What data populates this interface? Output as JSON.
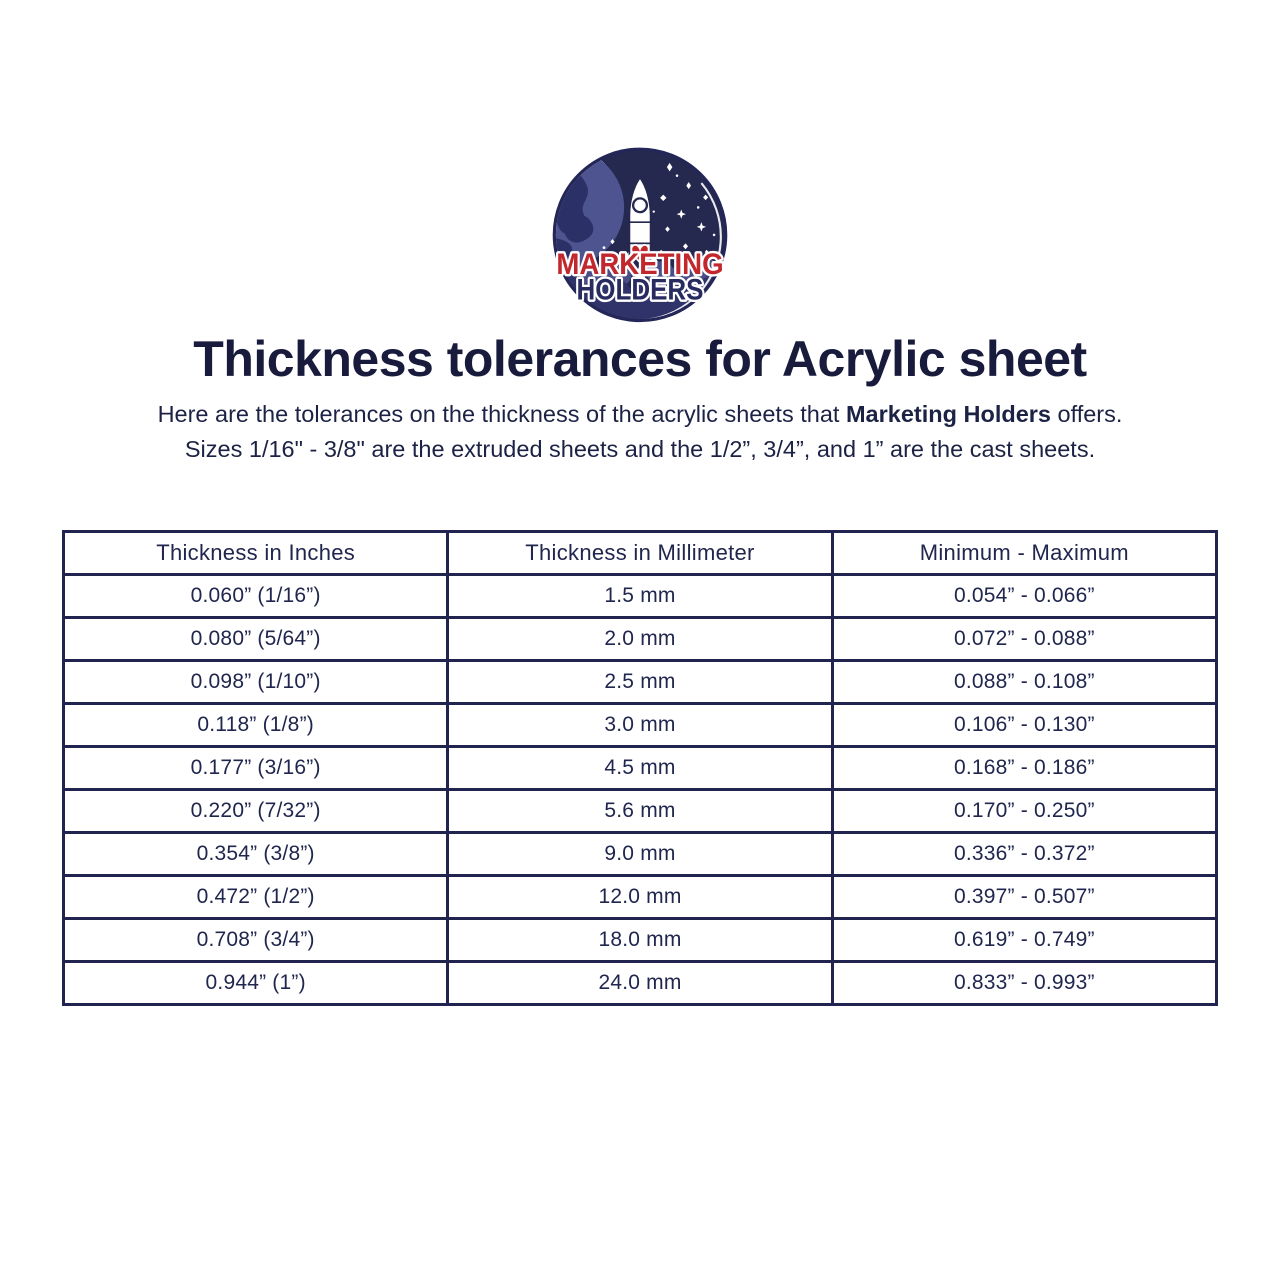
{
  "logo": {
    "name": "Marketing Holders logo",
    "text_line1": "MARKETING",
    "text_line2": "HOLDERS",
    "colors": {
      "space": "#25284f",
      "rim": "#232657",
      "earth": "#4d5490",
      "earth_land": "#2b3066",
      "cloud_light": "#4b4d86",
      "cloud_dark": "#30336a",
      "red": "#c1272d",
      "navy": "#272b60"
    }
  },
  "heading": {
    "title": "Thickness tolerances for Acrylic sheet"
  },
  "intro": {
    "line1_before": "Here are the tolerances on the thickness of the acrylic sheets that ",
    "line1_bold": "Marketing Holders",
    "line1_after": " offers.",
    "line2": "Sizes 1/16\" - 3/8\" are the extruded sheets and the 1/2”, 3/4”, and 1” are the cast sheets."
  },
  "table": {
    "headers": [
      "Thickness in Inches",
      "Thickness in Millimeter",
      "Minimum - Maximum"
    ],
    "rows": [
      [
        "0.060” (1/16”)",
        "1.5 mm",
        "0.054” - 0.066”"
      ],
      [
        "0.080” (5/64”)",
        "2.0 mm",
        "0.072” - 0.088”"
      ],
      [
        "0.098” (1/10”)",
        "2.5 mm",
        "0.088” - 0.108”"
      ],
      [
        "0.118” (1/8”)",
        "3.0 mm",
        "0.106” - 0.130”"
      ],
      [
        "0.177” (3/16”)",
        "4.5 mm",
        "0.168” - 0.186”"
      ],
      [
        "0.220” (7/32”)",
        "5.6 mm",
        "0.170” - 0.250”"
      ],
      [
        "0.354” (3/8”)",
        "9.0 mm",
        "0.336” - 0.372”"
      ],
      [
        "0.472” (1/2”)",
        "12.0 mm",
        "0.397” - 0.507”"
      ],
      [
        "0.708” (3/4”)",
        "18.0 mm",
        "0.619” - 0.749”"
      ],
      [
        "0.944” (1”)",
        "24.0 mm",
        "0.833” - 0.993”"
      ]
    ]
  }
}
